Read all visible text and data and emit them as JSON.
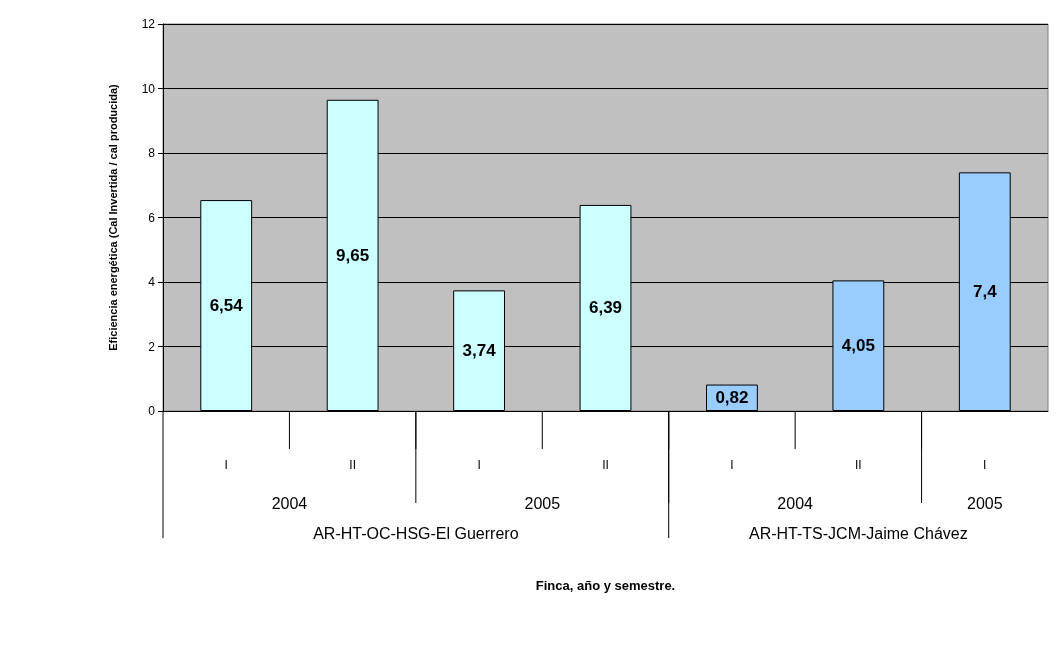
{
  "chart_data": {
    "type": "bar",
    "ylabel": "Eficiencia energética (Cal Invertida / cal producida)",
    "categories": [
      "I",
      "II",
      "I",
      "II",
      "I",
      "II",
      "I"
    ],
    "values": [
      6.54,
      9.65,
      3.74,
      6.39,
      0.82,
      4.05,
      7.4
    ],
    "colors": [
      "#ccffff",
      "#ccffff",
      "#ccffff",
      "#ccffff",
      "#99ccff",
      "#99ccff",
      "#99ccff"
    ],
    "value_labels": [
      "6,54",
      "9,65",
      "3,74",
      "6,39",
      "0,82",
      "4,05",
      "7,4"
    ],
    "annotations": [
      "2004",
      "2005",
      "2004",
      "2005",
      "AR-HT-OC-HSG-El Guerrero",
      "AR-HT-TS-JCM-Jaime Chávez",
      "Finca, año y semestre."
    ],
    "ylim": [
      0,
      12
    ],
    "yticks": [
      0,
      2,
      4,
      6,
      8,
      10,
      12
    ],
    "grid": "y"
  }
}
